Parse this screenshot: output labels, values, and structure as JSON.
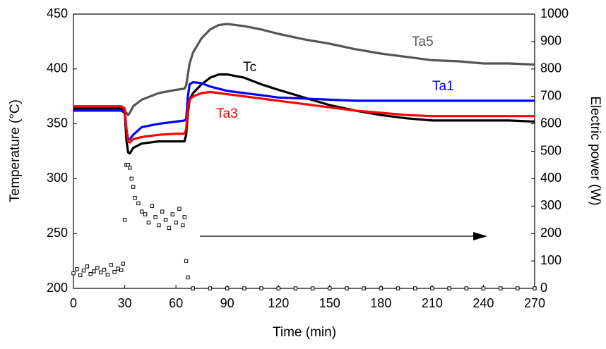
{
  "chart_data": {
    "type": "line",
    "xlabel": "Time (min)",
    "ylabel": "Temperature (°C)",
    "y2label": "Electric power (W)",
    "xlim": [
      0,
      270
    ],
    "xticks": [
      0,
      30,
      60,
      90,
      120,
      150,
      180,
      210,
      240,
      270
    ],
    "ylim": [
      200,
      450
    ],
    "yticks": [
      200,
      250,
      300,
      350,
      400,
      450
    ],
    "y2lim": [
      0,
      1000
    ],
    "y2ticks": [
      0,
      100,
      200,
      300,
      400,
      500,
      600,
      700,
      800,
      900,
      1000
    ],
    "x": [
      0,
      10,
      20,
      28,
      30,
      31,
      32,
      33,
      35,
      40,
      50,
      60,
      65,
      66,
      67,
      68,
      70,
      75,
      80,
      85,
      90,
      100,
      110,
      120,
      135,
      150,
      165,
      180,
      195,
      210,
      225,
      240,
      255,
      270
    ],
    "series": [
      {
        "name": "Ta5",
        "color": "#555555",
        "values": [
          362,
          362,
          362,
          362,
          362,
          360,
          358,
          360,
          366,
          372,
          378,
          381,
          382,
          385,
          395,
          405,
          415,
          428,
          436,
          440,
          441,
          439,
          436,
          432,
          427,
          423,
          418,
          414,
          411,
          408,
          407,
          405,
          405,
          404
        ]
      },
      {
        "name": "Tc",
        "color": "#000000",
        "values": [
          364,
          364,
          364,
          364,
          360,
          335,
          324,
          323,
          328,
          332,
          334,
          334,
          334,
          340,
          360,
          372,
          378,
          386,
          392,
          395,
          395,
          392,
          386,
          381,
          374,
          367,
          362,
          358,
          355,
          353,
          353,
          353,
          353,
          352
        ]
      },
      {
        "name": "Ta1",
        "color": "#0000ff",
        "values": [
          362,
          362,
          362,
          362,
          360,
          345,
          336,
          336,
          340,
          347,
          350,
          352,
          353,
          354,
          375,
          386,
          388,
          387,
          384,
          382,
          380,
          378,
          376,
          374,
          373,
          372,
          371,
          371,
          371,
          371,
          371,
          371,
          371,
          371
        ]
      },
      {
        "name": "Ta3",
        "color": "#ff0000",
        "values": [
          366,
          366,
          366,
          366,
          364,
          345,
          334,
          333,
          336,
          338,
          340,
          341,
          341,
          345,
          365,
          372,
          375,
          378,
          379,
          378,
          377,
          375,
          373,
          371,
          368,
          365,
          362,
          360,
          358,
          357,
          357,
          357,
          357,
          357
        ]
      },
      {
        "axis": "y2",
        "color": "#000000",
        "marker": "square",
        "x": [
          0,
          2,
          4,
          6,
          8,
          10,
          12,
          14,
          16,
          18,
          20,
          22,
          24,
          26,
          28,
          29,
          30,
          31,
          32,
          33,
          34,
          35,
          36,
          38,
          40,
          42,
          44,
          46,
          48,
          50,
          52,
          54,
          56,
          58,
          60,
          62,
          64,
          65,
          66,
          67,
          70,
          80,
          90,
          100,
          110,
          120,
          130,
          140,
          150,
          160,
          170,
          180,
          190,
          200,
          210,
          220,
          230,
          240,
          250,
          260,
          270
        ],
        "values": [
          55,
          70,
          48,
          65,
          80,
          52,
          62,
          75,
          58,
          68,
          50,
          85,
          60,
          72,
          66,
          90,
          250,
          450,
          450,
          440,
          400,
          370,
          330,
          310,
          280,
          270,
          240,
          300,
          260,
          230,
          280,
          250,
          220,
          270,
          240,
          290,
          230,
          260,
          100,
          40,
          0,
          0,
          0,
          0,
          0,
          0,
          0,
          0,
          0,
          0,
          0,
          0,
          0,
          0,
          0,
          0,
          0,
          0,
          0,
          0,
          0
        ]
      }
    ]
  }
}
